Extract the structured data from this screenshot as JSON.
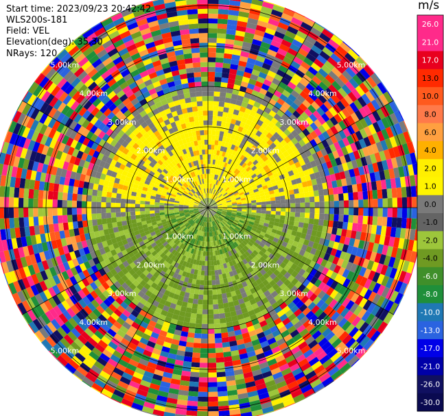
{
  "header": {
    "start_time": "Start time: 2023/09/23 20:42:42",
    "station": "WLS200s-181",
    "field": "Field: VEL",
    "elevation": "Elevation(deg): 35.30",
    "nrays": "NRays: 120"
  },
  "colorbar": {
    "unit": "m/s",
    "ticks": [
      "26.0",
      "21.0",
      "17.0",
      "13.0",
      "10.0",
      "8.0",
      "6.0",
      "4.0",
      "2.0",
      "1.0",
      "0.0",
      "-1.0",
      "-2.0",
      "-4.0",
      "-6.0",
      "-8.0",
      "-10.0",
      "-13.0",
      "-17.0",
      "-21.0",
      "-26.0",
      "-30.0"
    ],
    "colors": [
      "#ff2a8a",
      "#ff2a8a",
      "#e8001e",
      "#ff2a00",
      "#ff5a1e",
      "#ff7a4a",
      "#ffa040",
      "#ffb000",
      "#ffef00",
      "#fff400",
      "#7a7a7a",
      "#646464",
      "#9dc63b",
      "#6f9a22",
      "#3f8f2a",
      "#1f8f3a",
      "#1f78b4",
      "#2a63e0",
      "#0000e8",
      "#0000a8",
      "#101060",
      "#0a0a50"
    ]
  },
  "chart_data": {
    "type": "ppi",
    "field": "VEL",
    "unit": "m/s",
    "nrays": 120,
    "ring_labels": [
      "1.00km",
      "2.00km",
      "3.00km",
      "4.00km",
      "5.00km"
    ],
    "velocity_bands": [
      {
        "range_km": [
          0,
          3.0
        ],
        "dominant_north": "0.0 to 2.0",
        "dominant_south": "-2.0 to -6.0"
      },
      {
        "range_km": [
          3.0,
          5.3
        ],
        "dominant": "noise (all colors)"
      }
    ]
  }
}
